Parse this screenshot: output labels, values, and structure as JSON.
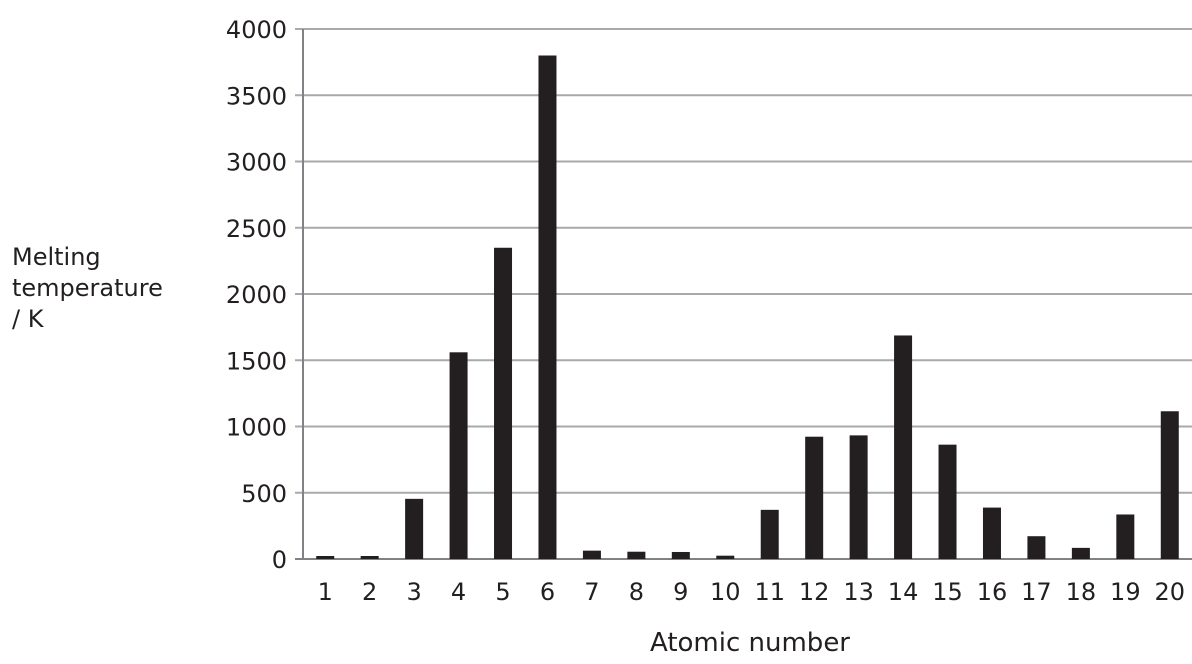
{
  "chart_data": {
    "type": "bar",
    "xlabel": "Atomic number",
    "ylabel_lines": [
      "Melting",
      "temperature",
      "/ K"
    ],
    "categories": [
      "1",
      "2",
      "3",
      "4",
      "5",
      "6",
      "7",
      "8",
      "9",
      "10",
      "11",
      "12",
      "13",
      "14",
      "15",
      "16",
      "17",
      "18",
      "19",
      "20"
    ],
    "values": [
      14,
      1,
      454,
      1560,
      2349,
      3800,
      63,
      55,
      53,
      25,
      371,
      923,
      933,
      1687,
      863,
      388,
      172,
      84,
      336,
      1115
    ],
    "ylim": [
      0,
      4000
    ],
    "yticks": [
      "0",
      "500",
      "1000",
      "1500",
      "2000",
      "2500",
      "3000",
      "3500",
      "4000"
    ],
    "grid": true,
    "colors": {
      "bar": "#231f20",
      "grid": "#a7a9ac",
      "axis": "#808285"
    }
  }
}
